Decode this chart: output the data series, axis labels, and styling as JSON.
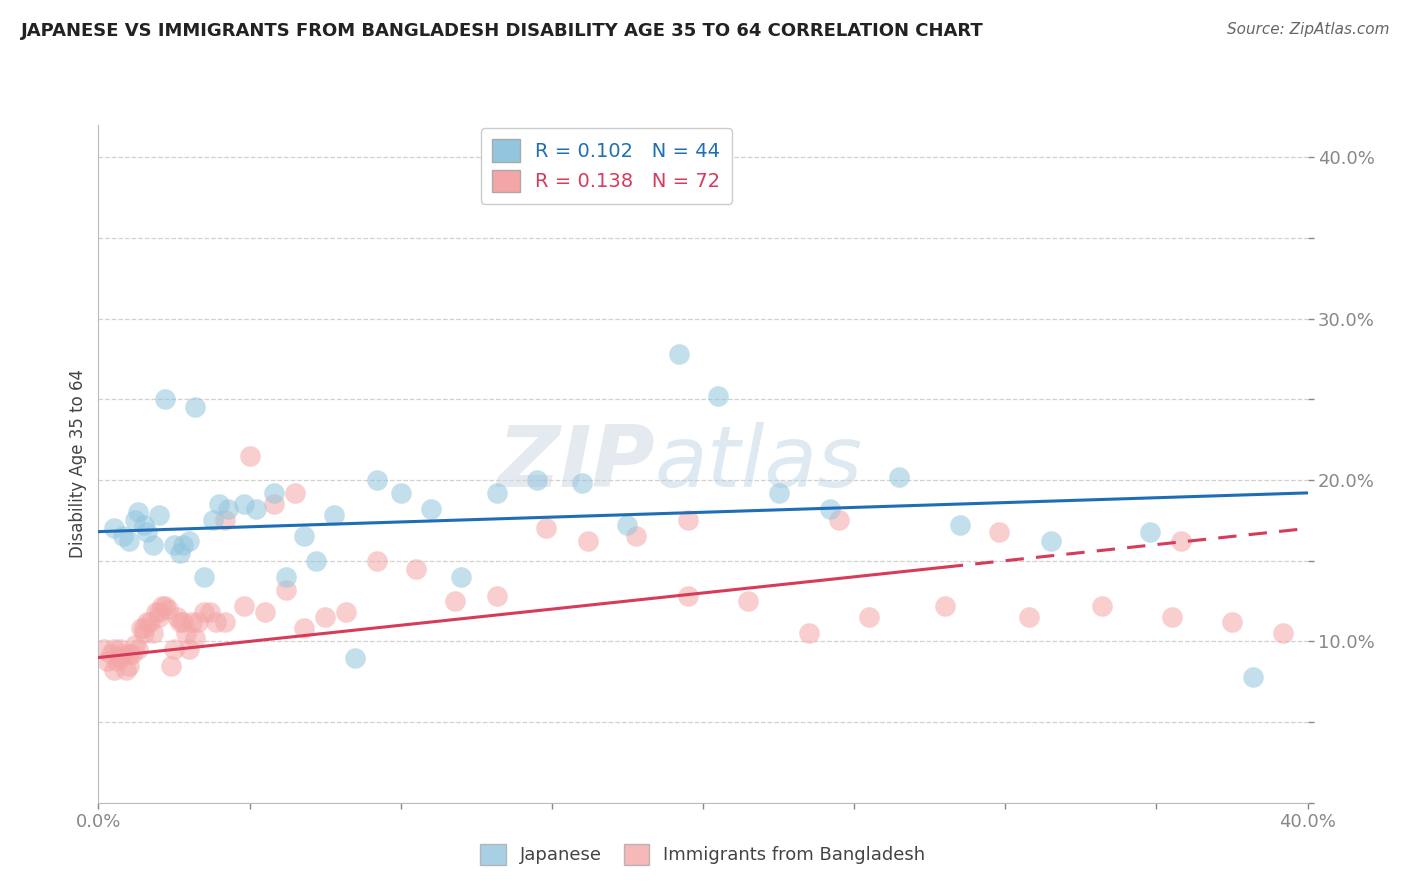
{
  "title": "JAPANESE VS IMMIGRANTS FROM BANGLADESH DISABILITY AGE 35 TO 64 CORRELATION CHART",
  "source_text": "Source: ZipAtlas.com",
  "ylabel": "Disability Age 35 to 64",
  "xlim": [
    0.0,
    0.4
  ],
  "ylim": [
    0.0,
    0.42
  ],
  "xticks": [
    0.0,
    0.05,
    0.1,
    0.15,
    0.2,
    0.25,
    0.3,
    0.35,
    0.4
  ],
  "yticks": [
    0.0,
    0.05,
    0.1,
    0.15,
    0.2,
    0.25,
    0.3,
    0.35,
    0.4
  ],
  "japanese_R": 0.102,
  "japanese_N": 44,
  "bangladesh_R": 0.138,
  "bangladesh_N": 72,
  "japanese_color": "#92c5de",
  "bangladesh_color": "#f4a6a6",
  "trend_japanese_color": "#1f6eb5",
  "trend_bangladesh_color": "#d63b5a",
  "watermark_zip": "ZIP",
  "watermark_atlas": "atlas",
  "legend_labels": [
    "Japanese",
    "Immigrants from Bangladesh"
  ],
  "japanese_x": [
    0.005,
    0.008,
    0.01,
    0.012,
    0.013,
    0.015,
    0.016,
    0.018,
    0.02,
    0.022,
    0.025,
    0.027,
    0.028,
    0.03,
    0.032,
    0.035,
    0.038,
    0.04,
    0.043,
    0.048,
    0.052,
    0.058,
    0.062,
    0.068,
    0.072,
    0.078,
    0.085,
    0.092,
    0.1,
    0.11,
    0.12,
    0.132,
    0.145,
    0.16,
    0.175,
    0.192,
    0.205,
    0.225,
    0.242,
    0.265,
    0.285,
    0.315,
    0.348,
    0.382
  ],
  "japanese_y": [
    0.17,
    0.165,
    0.162,
    0.175,
    0.18,
    0.172,
    0.168,
    0.16,
    0.178,
    0.25,
    0.16,
    0.155,
    0.16,
    0.162,
    0.245,
    0.14,
    0.175,
    0.185,
    0.182,
    0.185,
    0.182,
    0.192,
    0.14,
    0.165,
    0.15,
    0.178,
    0.09,
    0.2,
    0.192,
    0.182,
    0.14,
    0.192,
    0.2,
    0.198,
    0.172,
    0.278,
    0.252,
    0.192,
    0.182,
    0.202,
    0.172,
    0.162,
    0.168,
    0.078
  ],
  "bangladesh_x": [
    0.002,
    0.003,
    0.004,
    0.005,
    0.005,
    0.006,
    0.007,
    0.007,
    0.008,
    0.009,
    0.01,
    0.01,
    0.011,
    0.012,
    0.013,
    0.014,
    0.015,
    0.015,
    0.016,
    0.017,
    0.018,
    0.019,
    0.02,
    0.02,
    0.021,
    0.022,
    0.023,
    0.024,
    0.025,
    0.026,
    0.027,
    0.028,
    0.029,
    0.03,
    0.031,
    0.032,
    0.033,
    0.035,
    0.037,
    0.039,
    0.042,
    0.048,
    0.055,
    0.062,
    0.068,
    0.075,
    0.082,
    0.092,
    0.105,
    0.118,
    0.132,
    0.148,
    0.162,
    0.178,
    0.195,
    0.215,
    0.235,
    0.255,
    0.28,
    0.308,
    0.332,
    0.355,
    0.375,
    0.392,
    0.05,
    0.065,
    0.042,
    0.058,
    0.195,
    0.245,
    0.298,
    0.358
  ],
  "bangladesh_y": [
    0.095,
    0.088,
    0.092,
    0.082,
    0.095,
    0.088,
    0.09,
    0.095,
    0.092,
    0.082,
    0.085,
    0.092,
    0.092,
    0.098,
    0.095,
    0.108,
    0.105,
    0.108,
    0.112,
    0.112,
    0.105,
    0.118,
    0.115,
    0.118,
    0.122,
    0.122,
    0.12,
    0.085,
    0.095,
    0.115,
    0.112,
    0.112,
    0.105,
    0.095,
    0.112,
    0.102,
    0.112,
    0.118,
    0.118,
    0.112,
    0.112,
    0.122,
    0.118,
    0.132,
    0.108,
    0.115,
    0.118,
    0.15,
    0.145,
    0.125,
    0.128,
    0.17,
    0.162,
    0.165,
    0.128,
    0.125,
    0.105,
    0.115,
    0.122,
    0.115,
    0.122,
    0.115,
    0.112,
    0.105,
    0.215,
    0.192,
    0.175,
    0.185,
    0.175,
    0.175,
    0.168,
    0.162
  ],
  "trend_jap_x0": 0.0,
  "trend_jap_y0": 0.168,
  "trend_jap_x1": 0.4,
  "trend_jap_y1": 0.192,
  "trend_ban_x0": 0.0,
  "trend_ban_y0": 0.09,
  "trend_ban_x1": 0.4,
  "trend_ban_y1": 0.17,
  "trend_ban_solid_end": 0.28,
  "trend_ban_dashed_start": 0.28
}
